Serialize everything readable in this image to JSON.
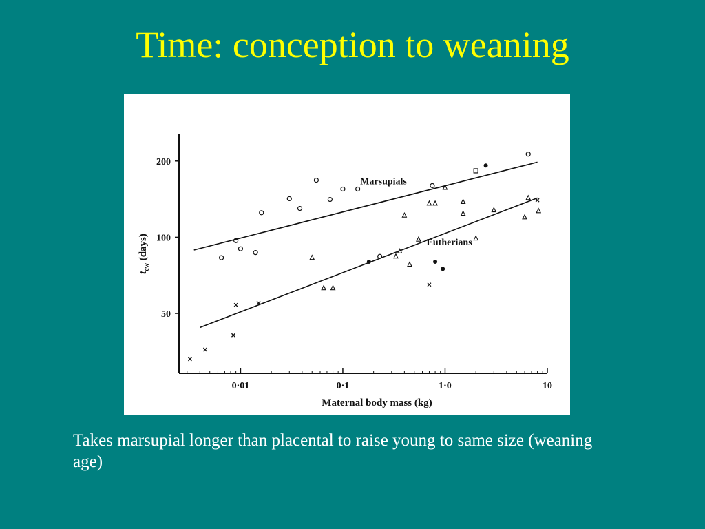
{
  "slide": {
    "title": "Time: conception to weaning",
    "caption": "Takes marsupial longer than placental to raise young to same size (weaning age)"
  },
  "colors": {
    "background": "#008080",
    "title": "#ffff00",
    "caption": "#ffffff",
    "figure_background": "#ffffff",
    "ink": "#111111"
  },
  "chart_data": {
    "type": "scatter",
    "title": "",
    "xlabel": "Maternal body mass (kg)",
    "ylabel_main": "t",
    "ylabel_sub": "cw",
    "ylabel_rest": " (days)",
    "xscale": "log",
    "yscale": "log",
    "xlim": [
      0.0025,
      10
    ],
    "ylim": [
      29,
      255
    ],
    "x_ticks": [
      {
        "value": 0.01,
        "label": "0·01"
      },
      {
        "value": 0.1,
        "label": "0·1"
      },
      {
        "value": 1.0,
        "label": "1·0"
      },
      {
        "value": 10,
        "label": "10"
      }
    ],
    "y_ticks": [
      {
        "value": 50,
        "label": "50"
      },
      {
        "value": 100,
        "label": "100"
      },
      {
        "value": 200,
        "label": "200"
      }
    ],
    "grid": false,
    "series": [
      {
        "name": "Marsupials",
        "marker": "o",
        "points": [
          {
            "x": 0.009,
            "y": 97
          },
          {
            "x": 0.0065,
            "y": 83
          },
          {
            "x": 0.01,
            "y": 90
          },
          {
            "x": 0.014,
            "y": 87
          },
          {
            "x": 0.016,
            "y": 125
          },
          {
            "x": 0.03,
            "y": 142
          },
          {
            "x": 0.038,
            "y": 130
          },
          {
            "x": 0.055,
            "y": 168
          },
          {
            "x": 0.075,
            "y": 141
          },
          {
            "x": 0.1,
            "y": 155
          },
          {
            "x": 0.14,
            "y": 155
          },
          {
            "x": 0.23,
            "y": 84
          },
          {
            "x": 0.75,
            "y": 160
          },
          {
            "x": 2.0,
            "y": 183
          },
          {
            "x": 2.5,
            "y": 192
          },
          {
            "x": 6.5,
            "y": 213
          }
        ],
        "fit": [
          {
            "x": 0.0035,
            "y": 89
          },
          {
            "x": 8.0,
            "y": 198
          }
        ]
      },
      {
        "name": "Eutherians",
        "marker": "mixed",
        "points": [
          {
            "x": 0.0032,
            "y": 33
          },
          {
            "x": 0.0045,
            "y": 36
          },
          {
            "x": 0.0085,
            "y": 41
          },
          {
            "x": 0.009,
            "y": 54
          },
          {
            "x": 0.015,
            "y": 55
          },
          {
            "x": 0.05,
            "y": 83
          },
          {
            "x": 0.065,
            "y": 63
          },
          {
            "x": 0.08,
            "y": 63
          },
          {
            "x": 0.18,
            "y": 80
          },
          {
            "x": 0.33,
            "y": 84
          },
          {
            "x": 0.36,
            "y": 88
          },
          {
            "x": 0.4,
            "y": 122
          },
          {
            "x": 0.45,
            "y": 78
          },
          {
            "x": 0.55,
            "y": 98
          },
          {
            "x": 0.7,
            "y": 65
          },
          {
            "x": 0.8,
            "y": 80
          },
          {
            "x": 0.95,
            "y": 75
          },
          {
            "x": 0.7,
            "y": 136
          },
          {
            "x": 0.8,
            "y": 136
          },
          {
            "x": 1.0,
            "y": 157
          },
          {
            "x": 1.5,
            "y": 138
          },
          {
            "x": 1.5,
            "y": 124
          },
          {
            "x": 2.0,
            "y": 99
          },
          {
            "x": 3.0,
            "y": 128
          },
          {
            "x": 6.0,
            "y": 120
          },
          {
            "x": 6.5,
            "y": 143
          },
          {
            "x": 8.0,
            "y": 140
          },
          {
            "x": 8.2,
            "y": 127
          }
        ],
        "fit": [
          {
            "x": 0.004,
            "y": 44
          },
          {
            "x": 8.0,
            "y": 143
          }
        ]
      }
    ],
    "annotations": [
      {
        "text": "Marsupials",
        "x": 0.25,
        "y": 162
      },
      {
        "text": "Eutherians",
        "x": 1.1,
        "y": 93
      }
    ]
  }
}
